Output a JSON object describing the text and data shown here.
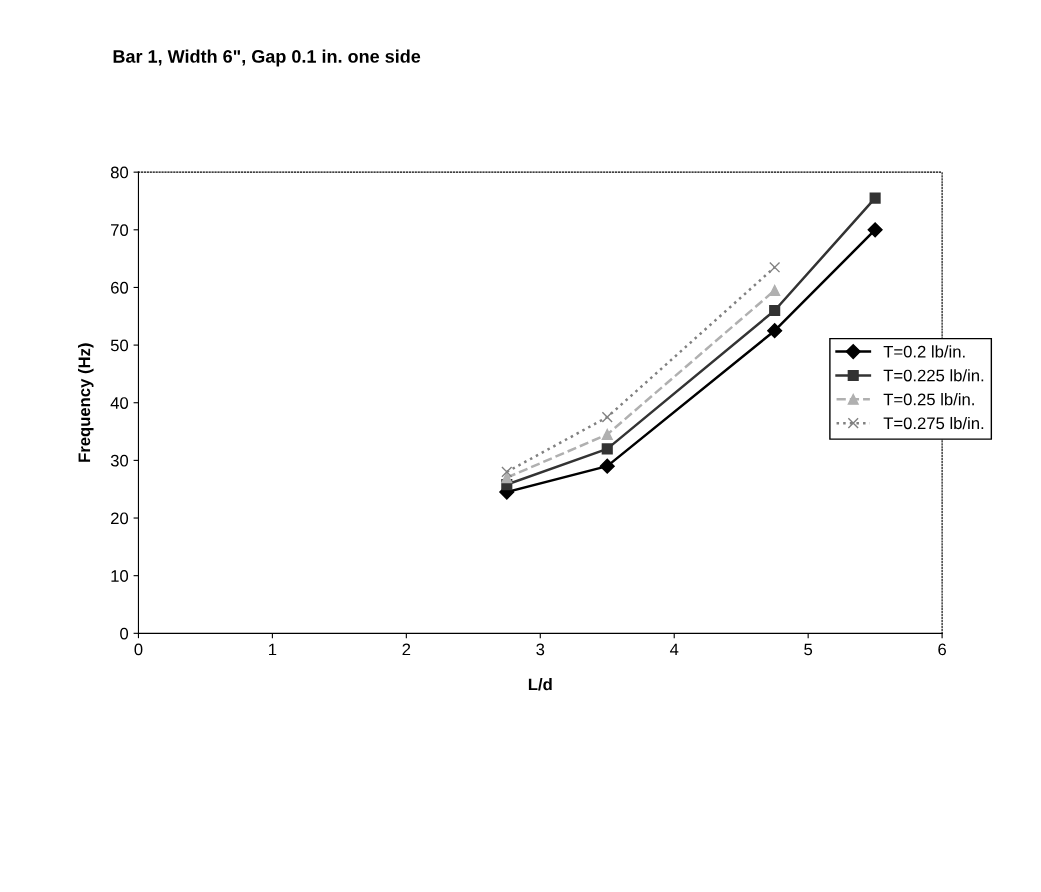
{
  "chart_data": {
    "type": "line",
    "title": "Bar 1, Width 6\", Gap 0.1 in. one side",
    "xlabel": "L/d",
    "ylabel": "Frequency (Hz)",
    "xlim": [
      0,
      6
    ],
    "xticks": [
      0,
      1,
      2,
      3,
      4,
      5,
      6
    ],
    "ylim": [
      0,
      80
    ],
    "yticks": [
      0,
      10,
      20,
      30,
      40,
      50,
      60,
      70,
      80
    ],
    "grid": false,
    "legend": "right",
    "series": [
      {
        "name": "T=0.2 lb/in.",
        "color": "#000000",
        "marker": "diamond",
        "line_style": "solid",
        "x": [
          2.75,
          3.5,
          4.75,
          5.5
        ],
        "values": [
          24.5,
          29,
          52.5,
          70
        ]
      },
      {
        "name": "T=0.225 lb/in.",
        "color": "#333333",
        "marker": "square",
        "line_style": "solid",
        "x": [
          2.75,
          3.5,
          4.75,
          5.5
        ],
        "values": [
          25.8,
          32,
          56,
          75.5
        ]
      },
      {
        "name": "T=0.25 lb/in.",
        "color": "#b0b0b0",
        "marker": "triangle",
        "line_style": "dashed",
        "x": [
          2.75,
          3.5,
          4.75
        ],
        "values": [
          27,
          34.5,
          59.5
        ]
      },
      {
        "name": "T=0.275 lb/in.",
        "color": "#808080",
        "marker": "cross",
        "line_style": "dotted",
        "x": [
          2.75,
          3.5,
          4.75
        ],
        "values": [
          28,
          37.5,
          63.5
        ]
      }
    ]
  }
}
